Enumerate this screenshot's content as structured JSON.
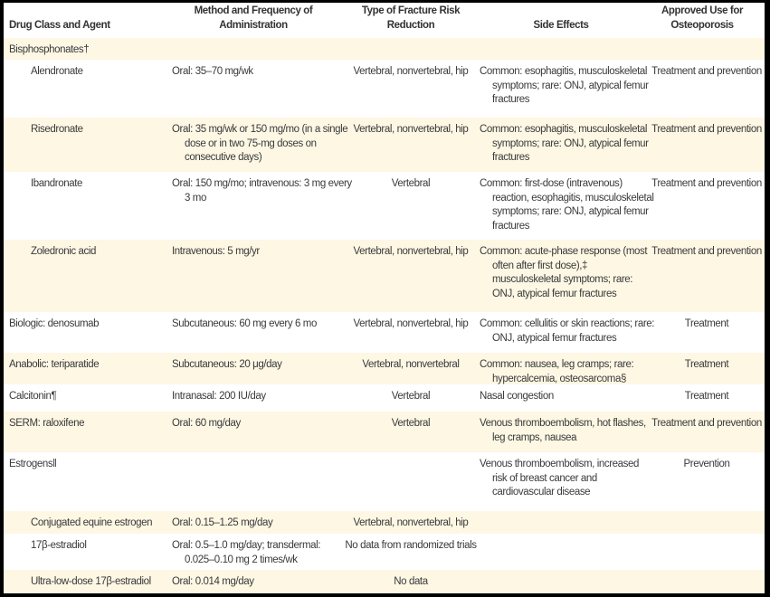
{
  "header": {
    "col_agent": "Drug Class and Agent",
    "col_method": "Method and Frequency of Administration",
    "col_fracture": "Type of Fracture Risk Reduction",
    "col_side_effects": "Side Effects",
    "col_approved": "Approved Use for Osteoporosis"
  },
  "rows": [
    {
      "agent": "Bisphosphonates†",
      "method": "",
      "fracture": "",
      "side_effects": "",
      "approved": ""
    },
    {
      "agent": "Alendronate",
      "method": "Oral: 35–70 mg/wk",
      "fracture": "Vertebral, nonvertebral, hip",
      "side_effects": "Common: esophagitis, musculoskeletal symptoms; rare: ONJ, atypical femur fractures",
      "approved": "Treatment and prevention"
    },
    {
      "agent": "Risedronate",
      "method": "Oral: 35 mg/wk or 150 mg/mo (in a single dose or in two 75-mg doses on consecutive days)",
      "fracture": "Vertebral, nonvertebral, hip",
      "side_effects": "Common: esophagitis, musculoskeletal symptoms; rare: ONJ, atypical femur fractures",
      "approved": "Treatment and prevention"
    },
    {
      "agent": "Ibandronate",
      "method": "Oral: 150 mg/mo; intravenous: 3 mg every 3 mo",
      "fracture": "Vertebral",
      "side_effects": "Common: first-dose (intravenous) reaction, esophagitis, musculoskeletal symptoms; rare: ONJ, atypical femur fractures",
      "approved": "Treatment and prevention"
    },
    {
      "agent": "Zoledronic acid",
      "method": "Intravenous: 5 mg/yr",
      "fracture": "Vertebral, nonvertebral, hip",
      "side_effects": "Common: acute-phase response (most often after first dose),‡ musculoskeletal symptoms; rare: ONJ, atypical femur fractures",
      "approved": "Treatment and prevention"
    },
    {
      "agent": "Biologic: denosumab",
      "method": "Subcutaneous: 60 mg every 6 mo",
      "fracture": "Vertebral, nonvertebral, hip",
      "side_effects": "Common: cellulitis or skin reactions; rare: ONJ, atypical femur fractures",
      "approved": "Treatment"
    },
    {
      "agent": "Anabolic: teriparatide",
      "method": "Subcutaneous: 20 μg/day",
      "fracture": "Vertebral, nonvertebral",
      "side_effects": "Common: nausea, leg cramps; rare: hypercalcemia, osteosarcoma§",
      "approved": "Treatment"
    },
    {
      "agent": "Calcitonin¶",
      "method": "Intranasal: 200 IU/day",
      "fracture": "Vertebral",
      "side_effects": "Nasal congestion",
      "approved": "Treatment"
    },
    {
      "agent": "SERM: raloxifene",
      "method": "Oral: 60 mg/day",
      "fracture": "Vertebral",
      "side_effects": "Venous thromboembolism, hot flashes, leg cramps, nausea",
      "approved": "Treatment and prevention"
    },
    {
      "agent": "Estrogens‖",
      "method": "",
      "fracture": "",
      "side_effects": "Venous thromboembolism, increased risk of breast cancer and cardiovascular disease",
      "approved": "Prevention"
    },
    {
      "agent": "Conjugated equine estrogen",
      "method": "Oral: 0.15–1.25 mg/day",
      "fracture": "Vertebral, nonvertebral, hip",
      "side_effects": "",
      "approved": ""
    },
    {
      "agent": "17β-estradiol",
      "method": "Oral: 0.5–1.0 mg/day; transdermal: 0.025–0.10 mg 2 times/wk",
      "fracture": "No data from randomized trials",
      "side_effects": "",
      "approved": ""
    },
    {
      "agent": "Ultra-low-dose 17β-estradiol",
      "method": "Oral: 0.014 mg/day",
      "fracture": "No data",
      "side_effects": "",
      "approved": ""
    }
  ],
  "colors": {
    "row_stripe": "#fdf7e4",
    "border": "#000000"
  }
}
